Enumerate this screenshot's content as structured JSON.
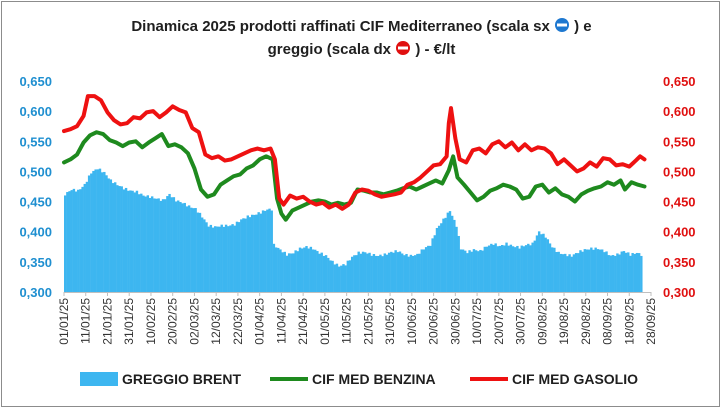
{
  "chart_data": {
    "type": "area+line",
    "title_line1": "Dinamica 2025 prodotti raffinati CIF Mediterraneo (scala sx",
    "title_line1_end": ") e",
    "title_line2": "greggio (scala dx",
    "title_line2_end": ") - €/lt",
    "left_axis": {
      "ylim": [
        0.3,
        0.65
      ],
      "ticks": [
        "0,300",
        "0,350",
        "0,400",
        "0,450",
        "0,500",
        "0,550",
        "0,600",
        "0,650"
      ],
      "color": "#1f8fd0"
    },
    "right_axis": {
      "ylim": [
        0.3,
        0.65
      ],
      "ticks": [
        "0,300",
        "0,350",
        "0,400",
        "0,450",
        "0,500",
        "0,550",
        "0,600",
        "0,650"
      ],
      "color": "#e01010"
    },
    "x_tick_labels": [
      "01/01/25",
      "11/01/25",
      "21/01/25",
      "31/01/25",
      "10/02/25",
      "20/02/25",
      "02/03/25",
      "12/03/25",
      "22/03/25",
      "01/04/25",
      "11/04/25",
      "21/04/25",
      "01/05/25",
      "11/05/25",
      "21/05/25",
      "31/05/25",
      "10/06/25",
      "20/06/25",
      "30/06/25",
      "10/07/25",
      "20/07/25",
      "30/07/25",
      "09/08/25",
      "19/08/25",
      "29/08/25",
      "08/09/25",
      "18/09/25",
      "28/09/25"
    ],
    "day_span": 270,
    "series": [
      {
        "name": "GREGGIO BRENT",
        "kind": "area",
        "color": "#3db6f0",
        "points": [
          [
            0,
            0.462
          ],
          [
            3,
            0.47
          ],
          [
            6,
            0.468
          ],
          [
            9,
            0.478
          ],
          [
            12,
            0.498
          ],
          [
            15,
            0.505
          ],
          [
            18,
            0.498
          ],
          [
            21,
            0.485
          ],
          [
            24,
            0.478
          ],
          [
            27,
            0.472
          ],
          [
            30,
            0.468
          ],
          [
            33,
            0.466
          ],
          [
            36,
            0.46
          ],
          [
            39,
            0.458
          ],
          [
            42,
            0.455
          ],
          [
            45,
            0.452
          ],
          [
            48,
            0.462
          ],
          [
            51,
            0.452
          ],
          [
            54,
            0.448
          ],
          [
            57,
            0.442
          ],
          [
            60,
            0.438
          ],
          [
            63,
            0.425
          ],
          [
            66,
            0.41
          ],
          [
            69,
            0.408
          ],
          [
            72,
            0.41
          ],
          [
            75,
            0.41
          ],
          [
            78,
            0.412
          ],
          [
            81,
            0.42
          ],
          [
            84,
            0.425
          ],
          [
            87,
            0.428
          ],
          [
            90,
            0.432
          ],
          [
            93,
            0.437
          ],
          [
            95,
            0.437
          ],
          [
            96,
            0.378
          ],
          [
            99,
            0.37
          ],
          [
            102,
            0.362
          ],
          [
            105,
            0.365
          ],
          [
            108,
            0.372
          ],
          [
            111,
            0.375
          ],
          [
            114,
            0.372
          ],
          [
            117,
            0.365
          ],
          [
            120,
            0.36
          ],
          [
            123,
            0.35
          ],
          [
            126,
            0.343
          ],
          [
            129,
            0.346
          ],
          [
            132,
            0.358
          ],
          [
            135,
            0.365
          ],
          [
            138,
            0.366
          ],
          [
            141,
            0.362
          ],
          [
            144,
            0.36
          ],
          [
            147,
            0.362
          ],
          [
            150,
            0.366
          ],
          [
            153,
            0.368
          ],
          [
            156,
            0.362
          ],
          [
            159,
            0.36
          ],
          [
            162,
            0.362
          ],
          [
            165,
            0.372
          ],
          [
            168,
            0.378
          ],
          [
            171,
            0.405
          ],
          [
            174,
            0.42
          ],
          [
            177,
            0.435
          ],
          [
            180,
            0.41
          ],
          [
            182,
            0.372
          ],
          [
            185,
            0.366
          ],
          [
            188,
            0.37
          ],
          [
            191,
            0.368
          ],
          [
            194,
            0.376
          ],
          [
            197,
            0.38
          ],
          [
            200,
            0.376
          ],
          [
            203,
            0.38
          ],
          [
            206,
            0.376
          ],
          [
            209,
            0.374
          ],
          [
            212,
            0.378
          ],
          [
            215,
            0.38
          ],
          [
            218,
            0.4
          ],
          [
            221,
            0.392
          ],
          [
            224,
            0.375
          ],
          [
            227,
            0.365
          ],
          [
            230,
            0.362
          ],
          [
            233,
            0.36
          ],
          [
            236,
            0.366
          ],
          [
            239,
            0.37
          ],
          [
            242,
            0.372
          ],
          [
            245,
            0.372
          ],
          [
            248,
            0.368
          ],
          [
            251,
            0.36
          ],
          [
            254,
            0.362
          ],
          [
            257,
            0.368
          ],
          [
            260,
            0.362
          ],
          [
            263,
            0.365
          ],
          [
            266,
            0.36
          ]
        ]
      },
      {
        "name": "CIF MED BENZINA",
        "kind": "line",
        "color": "#1e8a1e",
        "points": [
          [
            0,
            0.515
          ],
          [
            3,
            0.52
          ],
          [
            6,
            0.528
          ],
          [
            9,
            0.548
          ],
          [
            12,
            0.56
          ],
          [
            15,
            0.565
          ],
          [
            18,
            0.562
          ],
          [
            21,
            0.552
          ],
          [
            24,
            0.548
          ],
          [
            27,
            0.542
          ],
          [
            30,
            0.548
          ],
          [
            33,
            0.55
          ],
          [
            36,
            0.54
          ],
          [
            39,
            0.548
          ],
          [
            42,
            0.555
          ],
          [
            45,
            0.562
          ],
          [
            48,
            0.542
          ],
          [
            51,
            0.545
          ],
          [
            54,
            0.54
          ],
          [
            57,
            0.53
          ],
          [
            60,
            0.505
          ],
          [
            63,
            0.47
          ],
          [
            66,
            0.458
          ],
          [
            69,
            0.462
          ],
          [
            72,
            0.478
          ],
          [
            75,
            0.485
          ],
          [
            78,
            0.492
          ],
          [
            81,
            0.495
          ],
          [
            84,
            0.505
          ],
          [
            87,
            0.51
          ],
          [
            90,
            0.52
          ],
          [
            93,
            0.525
          ],
          [
            96,
            0.52
          ],
          [
            98,
            0.455
          ],
          [
            100,
            0.43
          ],
          [
            102,
            0.42
          ],
          [
            105,
            0.435
          ],
          [
            108,
            0.44
          ],
          [
            111,
            0.445
          ],
          [
            114,
            0.45
          ],
          [
            117,
            0.452
          ],
          [
            120,
            0.45
          ],
          [
            123,
            0.445
          ],
          [
            126,
            0.448
          ],
          [
            129,
            0.445
          ],
          [
            132,
            0.448
          ],
          [
            135,
            0.47
          ],
          [
            138,
            0.468
          ],
          [
            141,
            0.465
          ],
          [
            144,
            0.465
          ],
          [
            147,
            0.462
          ],
          [
            150,
            0.465
          ],
          [
            153,
            0.468
          ],
          [
            156,
            0.472
          ],
          [
            159,
            0.475
          ],
          [
            162,
            0.47
          ],
          [
            165,
            0.475
          ],
          [
            168,
            0.48
          ],
          [
            171,
            0.485
          ],
          [
            174,
            0.48
          ],
          [
            177,
            0.502
          ],
          [
            179,
            0.525
          ],
          [
            181,
            0.49
          ],
          [
            184,
            0.478
          ],
          [
            187,
            0.465
          ],
          [
            190,
            0.452
          ],
          [
            193,
            0.458
          ],
          [
            196,
            0.468
          ],
          [
            199,
            0.472
          ],
          [
            202,
            0.478
          ],
          [
            205,
            0.475
          ],
          [
            208,
            0.47
          ],
          [
            211,
            0.455
          ],
          [
            214,
            0.458
          ],
          [
            217,
            0.475
          ],
          [
            220,
            0.478
          ],
          [
            223,
            0.465
          ],
          [
            226,
            0.472
          ],
          [
            229,
            0.462
          ],
          [
            232,
            0.458
          ],
          [
            235,
            0.45
          ],
          [
            238,
            0.462
          ],
          [
            241,
            0.468
          ],
          [
            244,
            0.472
          ],
          [
            247,
            0.475
          ],
          [
            250,
            0.482
          ],
          [
            253,
            0.478
          ],
          [
            256,
            0.485
          ],
          [
            258,
            0.47
          ],
          [
            261,
            0.482
          ],
          [
            264,
            0.478
          ],
          [
            267,
            0.475
          ]
        ]
      },
      {
        "name": "CIF MED GASOLIO",
        "kind": "line",
        "color": "#ee1111",
        "points": [
          [
            0,
            0.567
          ],
          [
            3,
            0.57
          ],
          [
            6,
            0.575
          ],
          [
            9,
            0.592
          ],
          [
            11,
            0.625
          ],
          [
            14,
            0.625
          ],
          [
            17,
            0.618
          ],
          [
            20,
            0.598
          ],
          [
            23,
            0.585
          ],
          [
            26,
            0.578
          ],
          [
            29,
            0.58
          ],
          [
            32,
            0.59
          ],
          [
            35,
            0.588
          ],
          [
            38,
            0.598
          ],
          [
            41,
            0.6
          ],
          [
            44,
            0.59
          ],
          [
            47,
            0.598
          ],
          [
            50,
            0.608
          ],
          [
            53,
            0.602
          ],
          [
            56,
            0.598
          ],
          [
            59,
            0.572
          ],
          [
            62,
            0.565
          ],
          [
            65,
            0.528
          ],
          [
            68,
            0.522
          ],
          [
            71,
            0.525
          ],
          [
            74,
            0.518
          ],
          [
            77,
            0.52
          ],
          [
            80,
            0.525
          ],
          [
            83,
            0.53
          ],
          [
            86,
            0.535
          ],
          [
            89,
            0.538
          ],
          [
            92,
            0.535
          ],
          [
            95,
            0.538
          ],
          [
            97,
            0.52
          ],
          [
            99,
            0.455
          ],
          [
            101,
            0.445
          ],
          [
            104,
            0.46
          ],
          [
            107,
            0.455
          ],
          [
            110,
            0.458
          ],
          [
            113,
            0.45
          ],
          [
            116,
            0.445
          ],
          [
            119,
            0.448
          ],
          [
            122,
            0.44
          ],
          [
            125,
            0.445
          ],
          [
            128,
            0.438
          ],
          [
            131,
            0.445
          ],
          [
            134,
            0.465
          ],
          [
            137,
            0.47
          ],
          [
            140,
            0.468
          ],
          [
            143,
            0.462
          ],
          [
            146,
            0.458
          ],
          [
            149,
            0.46
          ],
          [
            152,
            0.462
          ],
          [
            155,
            0.465
          ],
          [
            158,
            0.478
          ],
          [
            161,
            0.482
          ],
          [
            164,
            0.49
          ],
          [
            167,
            0.5
          ],
          [
            170,
            0.51
          ],
          [
            173,
            0.512
          ],
          [
            176,
            0.525
          ],
          [
            177,
            0.58
          ],
          [
            178,
            0.605
          ],
          [
            180,
            0.555
          ],
          [
            182,
            0.52
          ],
          [
            185,
            0.515
          ],
          [
            188,
            0.535
          ],
          [
            191,
            0.538
          ],
          [
            194,
            0.53
          ],
          [
            197,
            0.545
          ],
          [
            200,
            0.55
          ],
          [
            203,
            0.54
          ],
          [
            206,
            0.548
          ],
          [
            209,
            0.535
          ],
          [
            212,
            0.545
          ],
          [
            215,
            0.535
          ],
          [
            218,
            0.54
          ],
          [
            221,
            0.538
          ],
          [
            224,
            0.53
          ],
          [
            227,
            0.512
          ],
          [
            230,
            0.52
          ],
          [
            233,
            0.51
          ],
          [
            236,
            0.5
          ],
          [
            239,
            0.505
          ],
          [
            242,
            0.515
          ],
          [
            245,
            0.508
          ],
          [
            248,
            0.522
          ],
          [
            251,
            0.52
          ],
          [
            254,
            0.51
          ],
          [
            257,
            0.512
          ],
          [
            260,
            0.508
          ],
          [
            263,
            0.518
          ],
          [
            265,
            0.525
          ],
          [
            267,
            0.52
          ]
        ]
      }
    ],
    "legend_position": "bottom",
    "grid": false
  },
  "legend": {
    "items": [
      "GREGGIO BRENT",
      "CIF MED BENZINA",
      "CIF MED GASOLIO"
    ]
  }
}
